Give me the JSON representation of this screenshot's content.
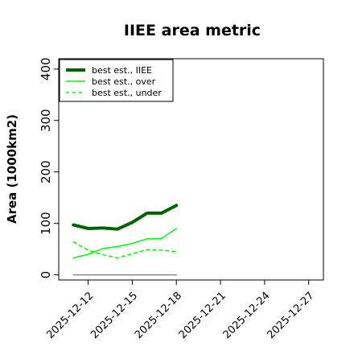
{
  "chart_data": {
    "type": "line",
    "title": "IIEE area metric",
    "xlabel": "",
    "ylabel": "Area (1000km2)",
    "x": [
      "2025-12-11",
      "2025-12-12",
      "2025-12-13",
      "2025-12-14",
      "2025-12-15",
      "2025-12-16",
      "2025-12-17",
      "2025-12-18"
    ],
    "xlim": [
      "2025-12-10",
      "2025-12-28"
    ],
    "xticks": [
      "2025-12-12",
      "2025-12-15",
      "2025-12-18",
      "2025-12-21",
      "2025-12-24",
      "2025-12-27"
    ],
    "ylim": [
      -10,
      420
    ],
    "yticks": [
      0,
      100,
      200,
      300,
      400
    ],
    "grid": false,
    "legend_position": "top-left",
    "series": [
      {
        "name": "best est., IIEE",
        "values": [
          97,
          90,
          91,
          89,
          102,
          120,
          120,
          135
        ],
        "color": "#006400",
        "style": "solid",
        "weight": "thick"
      },
      {
        "name": "best est., over",
        "values": [
          33,
          40,
          51,
          55,
          61,
          70,
          71,
          90
        ],
        "color": "#00ff00",
        "style": "solid",
        "weight": "thin"
      },
      {
        "name": "best est., under",
        "values": [
          64,
          48,
          39,
          33,
          41,
          49,
          48,
          45
        ],
        "color": "#00ff00",
        "style": "dashed",
        "weight": "thin"
      },
      {
        "name": "",
        "values": [
          0,
          0,
          0,
          0,
          0,
          0,
          0,
          0
        ],
        "color": "#888888",
        "style": "solid",
        "weight": "thin"
      }
    ]
  }
}
